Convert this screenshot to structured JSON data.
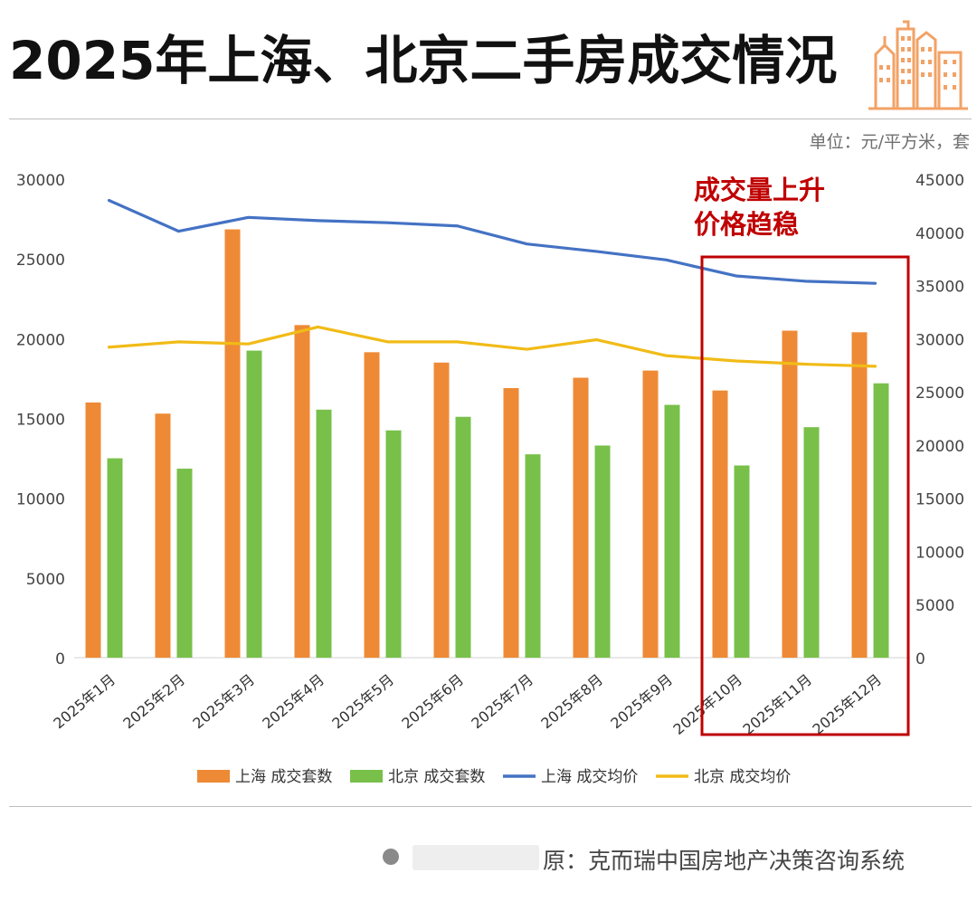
{
  "header": {
    "title": "2025年上海、北京二手房成交情况",
    "unit": "单位：元/平方米，套"
  },
  "footer": {
    "source": "原：克而瑞中国房地产决策咨询系统"
  },
  "colors": {
    "shanghai_volume": "#ee8a35",
    "beijing_volume": "#78c04a",
    "shanghai_price": "#4472c4",
    "beijing_price": "#f1bb17",
    "highlight": "#c00000",
    "logo": "#f2a266"
  },
  "chart_data": {
    "type": "bar",
    "categories": [
      "2025年1月",
      "2025年2月",
      "2025年3月",
      "2025年4月",
      "2025年5月",
      "2025年6月",
      "2025年7月",
      "2025年8月",
      "2025年9月",
      "2025年10月",
      "2025年11月",
      "2025年12月"
    ],
    "series": [
      {
        "name": "上海 成交套数",
        "type": "bar",
        "axis": "left",
        "color": "#ee8a35",
        "values": [
          16000,
          15300,
          26850,
          20850,
          19150,
          18500,
          16900,
          17550,
          18000,
          16750,
          20500,
          20400
        ]
      },
      {
        "name": "北京 成交套数",
        "type": "bar",
        "axis": "left",
        "color": "#78c04a",
        "values": [
          12500,
          11850,
          19250,
          15550,
          14250,
          15100,
          12750,
          13300,
          15850,
          12050,
          14450,
          17200
        ]
      },
      {
        "name": "上海 成交均价",
        "type": "line",
        "axis": "right",
        "color": "#4472c4",
        "values": [
          43000,
          40100,
          41400,
          41100,
          40900,
          40600,
          38900,
          38200,
          37400,
          35900,
          35400,
          35200
        ]
      },
      {
        "name": "北京 成交均价",
        "type": "line",
        "axis": "right",
        "color": "#f1bb17",
        "values": [
          29200,
          29700,
          29500,
          31100,
          29700,
          29700,
          29000,
          29900,
          28400,
          27900,
          27600,
          27400
        ]
      }
    ],
    "ylim_left": [
      0,
      30000
    ],
    "yticks_left": [
      0,
      5000,
      10000,
      15000,
      20000,
      25000,
      30000
    ],
    "ylim_right": [
      0,
      45000
    ],
    "yticks_right": [
      0,
      5000,
      10000,
      15000,
      20000,
      25000,
      30000,
      35000,
      40000,
      45000
    ],
    "grid": false,
    "legend": "bottom",
    "annotation": {
      "lines": [
        "成交量上升",
        "价格趋稳"
      ],
      "highlight_categories": [
        "2025年10月",
        "2025年11月",
        "2025年12月"
      ]
    }
  }
}
